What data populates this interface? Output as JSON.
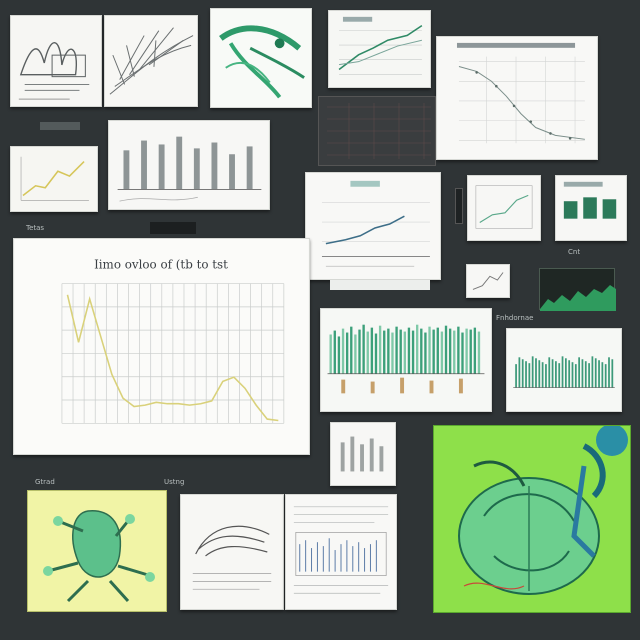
{
  "main_chart": {
    "title": "Iimo ovloo of (tb to tst"
  },
  "chart_data": {
    "type": "line",
    "title": "Iimo ovloo of (tb to tst",
    "xlabel": "",
    "ylabel": "",
    "x": [
      1,
      2,
      3,
      4,
      5,
      6,
      7,
      8,
      9,
      10,
      11,
      12,
      13,
      14,
      15,
      16,
      17,
      18,
      19,
      20
    ],
    "values": [
      0.92,
      0.58,
      0.89,
      0.62,
      0.35,
      0.18,
      0.12,
      0.13,
      0.15,
      0.14,
      0.14,
      0.13,
      0.14,
      0.16,
      0.3,
      0.33,
      0.25,
      0.13,
      0.03,
      0.02
    ],
    "ylim": [
      0,
      1
    ],
    "grid": true
  },
  "labels": {
    "l1": "Gtrad",
    "l2": "Ustng",
    "l3": "Fnhdornae",
    "l4": "Tetas",
    "l5": "Cnt"
  }
}
